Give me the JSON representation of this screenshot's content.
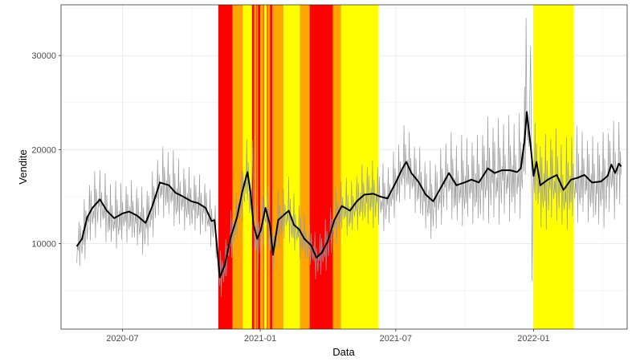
{
  "chart_data": {
    "type": "line",
    "title": "",
    "xlabel": "Data",
    "ylabel": "Vendite",
    "xlim": [
      "2020-04-10",
      "2022-05-06"
    ],
    "ylim": [
      900,
      35400
    ],
    "grid": true,
    "x_ticks": [
      {
        "date": "2020-07-01",
        "label": "2020-07"
      },
      {
        "date": "2021-01-01",
        "label": "2021-01"
      },
      {
        "date": "2021-07-01",
        "label": "2021-07"
      },
      {
        "date": "2022-01-01",
        "label": "2022-01"
      }
    ],
    "y_ticks": [
      {
        "value": 10000,
        "label": "10000"
      },
      {
        "value": 20000,
        "label": "20000"
      },
      {
        "value": 30000,
        "label": "30000"
      }
    ],
    "colors": {
      "red": "#ff0000",
      "orange": "#ffa500",
      "yellow": "#ffff00",
      "daily_series": "#999999",
      "smoothed_series": "#000000",
      "grid": "#ebebeb",
      "panel_border": "#333333"
    },
    "restriction_bands": [
      {
        "start": "2020-11-06",
        "end": "2020-11-25",
        "color": "red"
      },
      {
        "start": "2020-11-25",
        "end": "2020-12-09",
        "color": "orange"
      },
      {
        "start": "2020-12-09",
        "end": "2020-12-21",
        "color": "yellow"
      },
      {
        "start": "2020-12-21",
        "end": "2020-12-24",
        "color": "red"
      },
      {
        "start": "2020-12-24",
        "end": "2020-12-27",
        "color": "orange"
      },
      {
        "start": "2020-12-27",
        "end": "2020-12-28",
        "color": "red"
      },
      {
        "start": "2020-12-28",
        "end": "2020-12-29",
        "color": "orange"
      },
      {
        "start": "2020-12-29",
        "end": "2021-01-01",
        "color": "red"
      },
      {
        "start": "2021-01-01",
        "end": "2021-01-05",
        "color": "orange"
      },
      {
        "start": "2021-01-05",
        "end": "2021-01-06",
        "color": "red"
      },
      {
        "start": "2021-01-06",
        "end": "2021-01-10",
        "color": "yellow"
      },
      {
        "start": "2021-01-10",
        "end": "2021-01-11",
        "color": "red"
      },
      {
        "start": "2021-01-11",
        "end": "2021-01-14",
        "color": "orange"
      },
      {
        "start": "2021-01-14",
        "end": "2021-01-17",
        "color": "red"
      },
      {
        "start": "2021-01-17",
        "end": "2021-02-01",
        "color": "orange"
      },
      {
        "start": "2021-02-01",
        "end": "2021-02-23",
        "color": "yellow"
      },
      {
        "start": "2021-02-23",
        "end": "2021-03-08",
        "color": "orange"
      },
      {
        "start": "2021-03-08",
        "end": "2021-04-08",
        "color": "red"
      },
      {
        "start": "2021-04-08",
        "end": "2021-04-19",
        "color": "orange"
      },
      {
        "start": "2021-04-19",
        "end": "2021-06-08",
        "color": "yellow"
      },
      {
        "start": "2022-01-01",
        "end": "2022-02-24",
        "color": "yellow"
      }
    ],
    "series": [
      {
        "style": "daily",
        "spikes": [
          {
            "date": "2020-12-22",
            "value": 21000
          },
          {
            "date": "2021-12-22",
            "value": 34000
          },
          {
            "date": "2021-12-28",
            "value": 31000
          },
          {
            "date": "2021-12-30",
            "value": 6000
          }
        ],
        "x": [
          "2020-05-01",
          "2020-05-08",
          "2020-05-15",
          "2020-05-22",
          "2020-06-01",
          "2020-06-15",
          "2020-07-01",
          "2020-07-15",
          "2020-08-01",
          "2020-08-15",
          "2020-09-01",
          "2020-09-15",
          "2020-10-01",
          "2020-10-15",
          "2020-11-01",
          "2020-11-08",
          "2020-11-15",
          "2020-11-22",
          "2020-12-01",
          "2020-12-10",
          "2020-12-15",
          "2020-12-20",
          "2020-12-28",
          "2021-01-05",
          "2021-01-15",
          "2021-01-20",
          "2021-01-28",
          "2021-02-05",
          "2021-02-15",
          "2021-02-25",
          "2021-03-05",
          "2021-03-12",
          "2021-03-20",
          "2021-04-01",
          "2021-04-10",
          "2021-04-20",
          "2021-05-01",
          "2021-05-15",
          "2021-06-01",
          "2021-06-15",
          "2021-07-01",
          "2021-07-15",
          "2021-08-01",
          "2021-08-15",
          "2021-09-01",
          "2021-09-15",
          "2021-10-01",
          "2021-10-15",
          "2021-11-01",
          "2021-11-15",
          "2021-12-01",
          "2021-12-15",
          "2021-12-20",
          "2021-12-23",
          "2021-12-30",
          "2022-01-05",
          "2022-01-15",
          "2022-02-01",
          "2022-02-15",
          "2022-03-01",
          "2022-03-15",
          "2022-04-01",
          "2022-04-10",
          "2022-04-20",
          "2022-04-28"
        ],
        "amplitude": [
          2500,
          3000,
          3500,
          3500,
          3500,
          3500,
          3500,
          3500,
          3500,
          3500,
          3800,
          4000,
          3500,
          3000,
          2800,
          2500,
          2500,
          2500,
          3000,
          3500,
          4000,
          4000,
          3500,
          3200,
          3000,
          3000,
          3000,
          3200,
          3500,
          3000,
          2500,
          2200,
          2500,
          2800,
          3000,
          3000,
          3000,
          3500,
          3500,
          3500,
          3500,
          4000,
          4000,
          4000,
          4000,
          4500,
          4800,
          5000,
          5500,
          5500,
          5500,
          5500,
          6000,
          6000,
          5000,
          5000,
          5000,
          4800,
          4800,
          5000,
          5000,
          5000,
          5000,
          5000,
          5000
        ]
      },
      {
        "style": "smoothed",
        "x": [
          "2020-05-01",
          "2020-05-08",
          "2020-05-15",
          "2020-05-22",
          "2020-06-01",
          "2020-06-10",
          "2020-06-20",
          "2020-07-01",
          "2020-07-10",
          "2020-07-20",
          "2020-08-01",
          "2020-08-10",
          "2020-08-20",
          "2020-09-01",
          "2020-09-10",
          "2020-09-20",
          "2020-10-01",
          "2020-10-10",
          "2020-10-20",
          "2020-10-28",
          "2020-11-01",
          "2020-11-08",
          "2020-11-15",
          "2020-11-22",
          "2020-12-01",
          "2020-12-08",
          "2020-12-15",
          "2020-12-19",
          "2020-12-23",
          "2020-12-28",
          "2021-01-02",
          "2021-01-08",
          "2021-01-14",
          "2021-01-18",
          "2021-01-25",
          "2021-02-01",
          "2021-02-08",
          "2021-02-15",
          "2021-02-22",
          "2021-03-01",
          "2021-03-10",
          "2021-03-17",
          "2021-03-24",
          "2021-04-01",
          "2021-04-10",
          "2021-04-20",
          "2021-05-01",
          "2021-05-10",
          "2021-05-20",
          "2021-06-01",
          "2021-06-10",
          "2021-06-20",
          "2021-07-01",
          "2021-07-10",
          "2021-07-15",
          "2021-07-22",
          "2021-08-01",
          "2021-08-10",
          "2021-08-20",
          "2021-09-01",
          "2021-09-10",
          "2021-09-20",
          "2021-10-01",
          "2021-10-10",
          "2021-10-20",
          "2021-11-01",
          "2021-11-10",
          "2021-11-20",
          "2021-12-01",
          "2021-12-10",
          "2021-12-15",
          "2021-12-20",
          "2021-12-23",
          "2021-12-28",
          "2022-01-01",
          "2022-01-05",
          "2022-01-10",
          "2022-01-20",
          "2022-02-01",
          "2022-02-10",
          "2022-02-20",
          "2022-03-01",
          "2022-03-10",
          "2022-03-20",
          "2022-04-01",
          "2022-04-10",
          "2022-04-15",
          "2022-04-20",
          "2022-04-25",
          "2022-04-28"
        ],
        "values": [
          9700,
          10500,
          12800,
          13800,
          14700,
          13500,
          12700,
          13200,
          13400,
          13000,
          12200,
          14000,
          16500,
          16200,
          15400,
          15000,
          14500,
          14300,
          13800,
          12400,
          12500,
          6400,
          7800,
          10500,
          12800,
          15500,
          17600,
          15500,
          12000,
          10500,
          11500,
          13800,
          12000,
          8800,
          12500,
          13000,
          13500,
          12000,
          11500,
          10500,
          9800,
          8500,
          9000,
          10200,
          12500,
          14000,
          13500,
          14500,
          15200,
          15300,
          15000,
          14800,
          16500,
          18000,
          18700,
          17500,
          16500,
          15200,
          14500,
          16200,
          17500,
          16200,
          16500,
          16800,
          16500,
          18000,
          17500,
          17800,
          17800,
          17600,
          18000,
          21000,
          24000,
          20500,
          17200,
          18700,
          16200,
          16800,
          17300,
          15700,
          16800,
          17000,
          17300,
          16500,
          16600,
          17200,
          18400,
          17500,
          18500,
          18200
        ]
      }
    ]
  }
}
